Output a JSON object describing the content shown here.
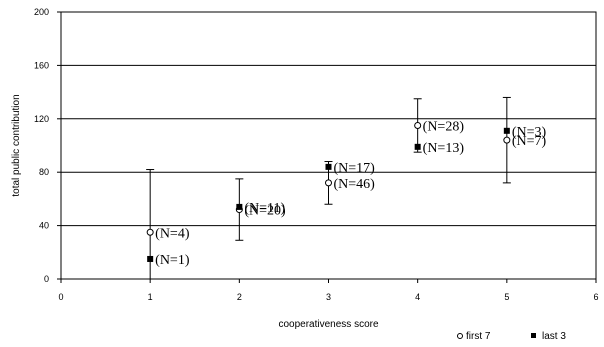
{
  "chart_data": {
    "type": "scatter",
    "xlabel": "cooperativeness score",
    "ylabel": "total public contribution",
    "xlim": [
      0,
      6
    ],
    "ylim": [
      0,
      200
    ],
    "x_ticks": [
      0,
      1,
      2,
      3,
      4,
      5,
      6
    ],
    "y_ticks": [
      0,
      40,
      80,
      120,
      160,
      200
    ],
    "grid": "horizontal",
    "legend_position": "bottom-right",
    "series": [
      {
        "name": "first 7",
        "marker": "open-circle",
        "points": [
          {
            "x": 1,
            "y": 35,
            "err_low": 0,
            "err_high": 82,
            "label": "(N=4)"
          },
          {
            "x": 2,
            "y": 52,
            "err_low": 29,
            "err_high": 75,
            "label": "(N=20)"
          },
          {
            "x": 3,
            "y": 72,
            "err_low": 56,
            "err_high": 88,
            "label": "(N=46)"
          },
          {
            "x": 4,
            "y": 115,
            "err_low": 95,
            "err_high": 135,
            "label": "(N=28)"
          },
          {
            "x": 5,
            "y": 104,
            "err_low": 72,
            "err_high": 136,
            "label": "(N=7)"
          }
        ]
      },
      {
        "name": "last 3",
        "marker": "filled-square",
        "points": [
          {
            "x": 1,
            "y": 15,
            "label": "(N=1)"
          },
          {
            "x": 2,
            "y": 54,
            "label": "(N=11)"
          },
          {
            "x": 3,
            "y": 84,
            "label": "(N=17)"
          },
          {
            "x": 4,
            "y": 99,
            "label": "(N=13)"
          },
          {
            "x": 5,
            "y": 111,
            "label": "(N=3)"
          }
        ]
      }
    ]
  }
}
